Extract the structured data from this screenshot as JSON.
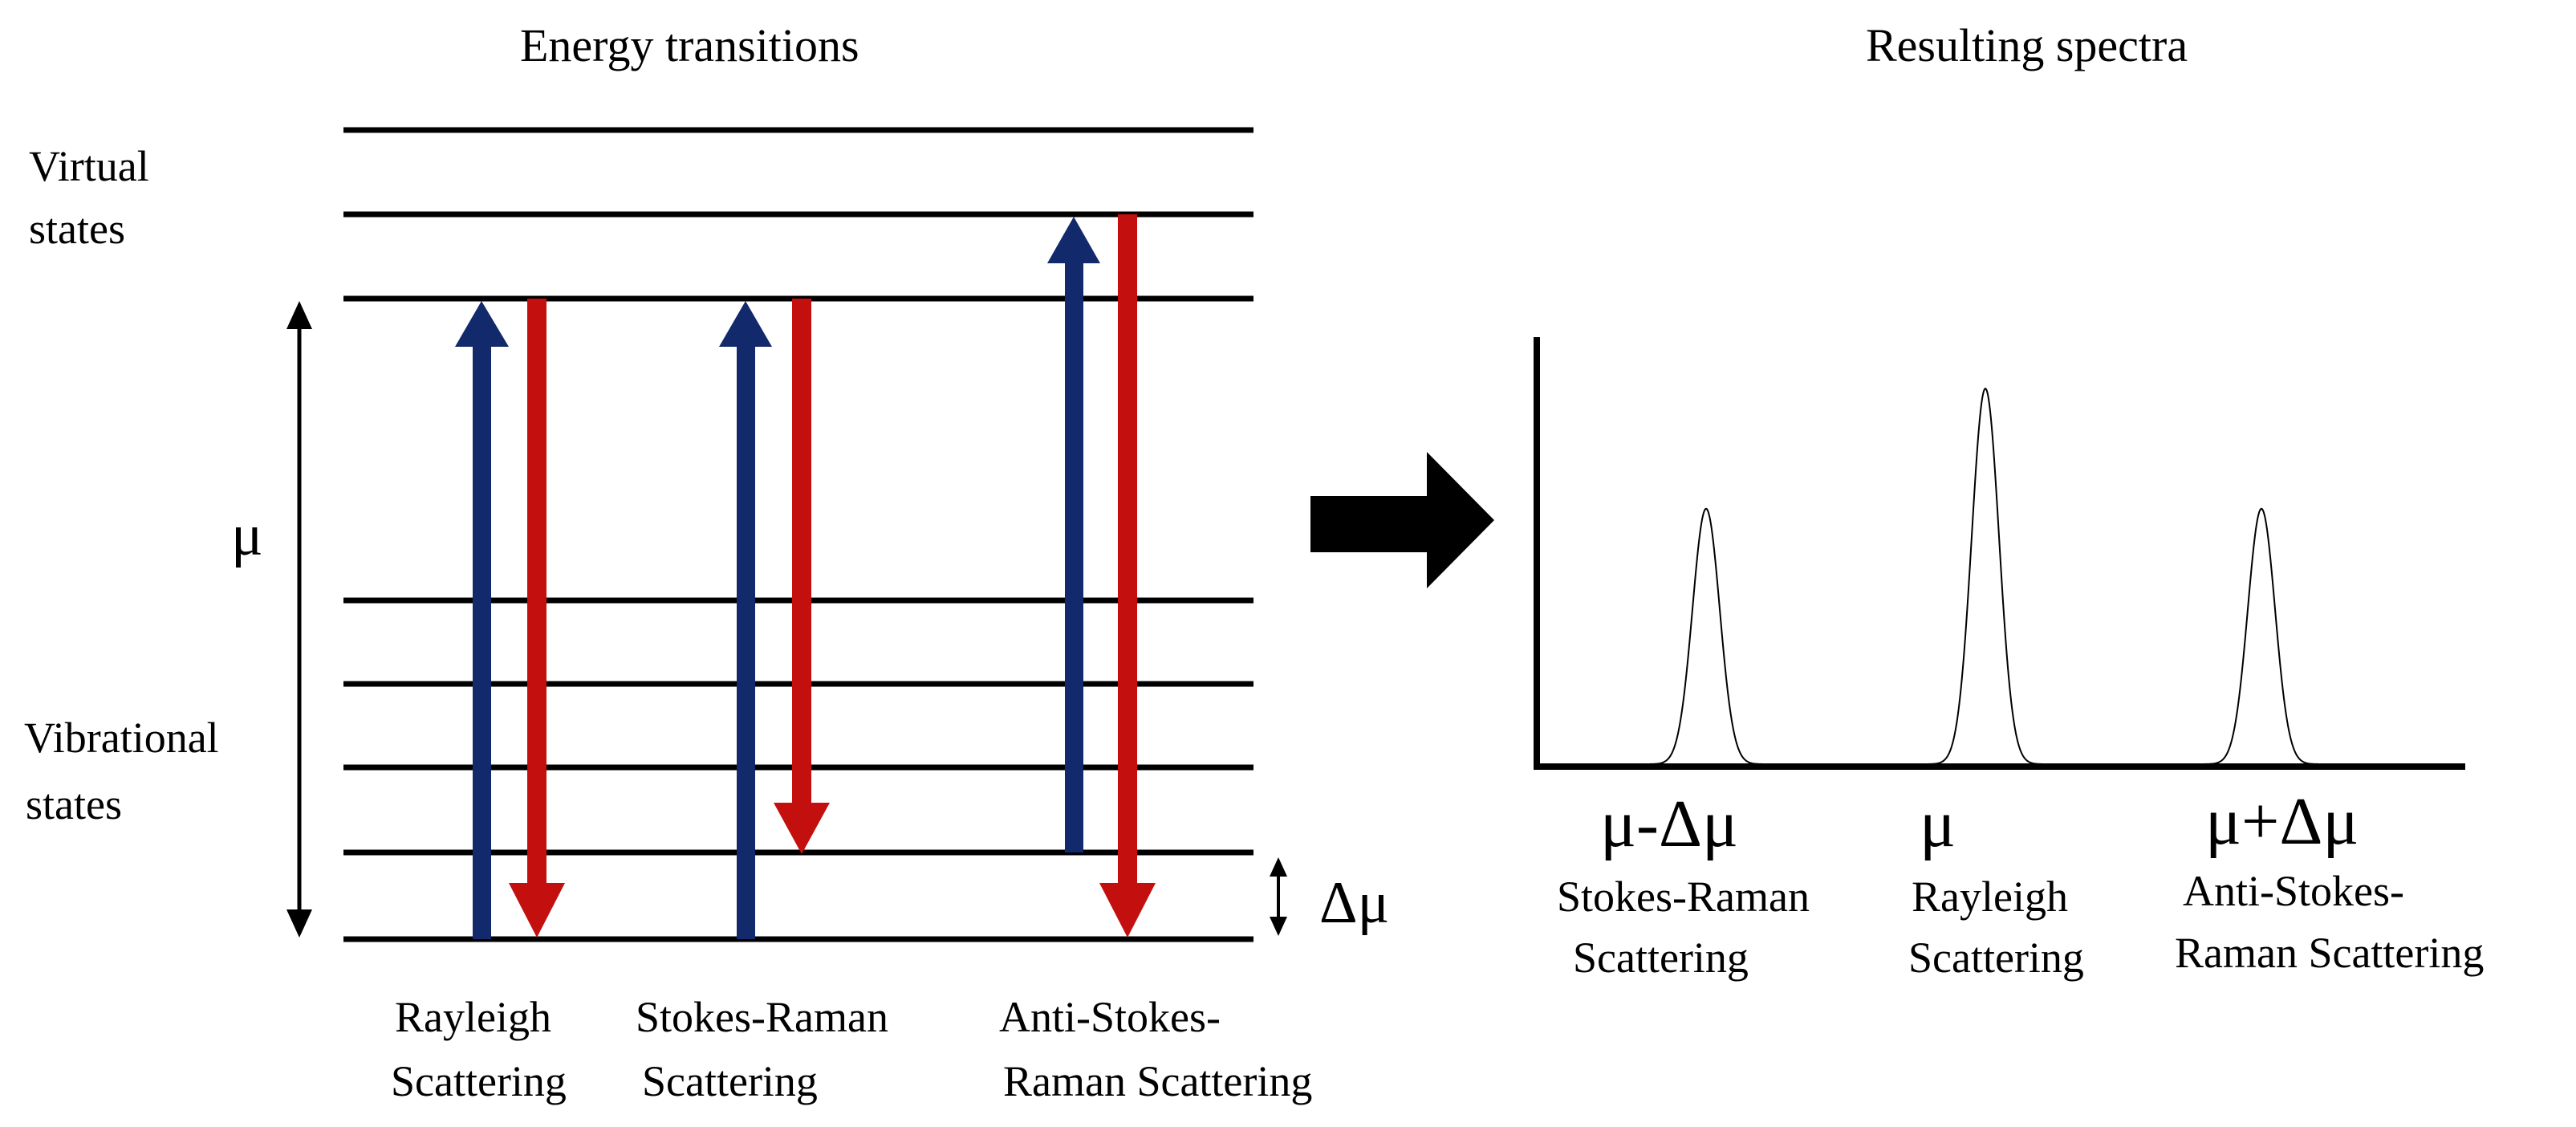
{
  "left_panel": {
    "title": "Energy transitions",
    "virtual_label_line1": "Virtual",
    "virtual_label_line2": "states",
    "vibrational_label_line1": "Vibrational",
    "vibrational_label_line2": "states",
    "mu_symbol": "μ",
    "delta_mu_symbol": "Δμ",
    "captions": [
      {
        "line1": "Rayleigh",
        "line2": "Scattering"
      },
      {
        "line1": "Stokes-Raman",
        "line2": "Scattering"
      },
      {
        "line1": "Anti-Stokes-",
        "line2": "Raman Scattering"
      }
    ]
  },
  "right_panel": {
    "title": "Resulting spectra",
    "peaks": [
      {
        "symbol": "μ-Δμ",
        "line1": "Stokes-Raman",
        "line2": "Scattering",
        "relative_height": 0.68
      },
      {
        "symbol": "μ",
        "line1": "Rayleigh",
        "line2": "Scattering",
        "relative_height": 1.0
      },
      {
        "symbol": "μ+Δμ",
        "line1": "Anti-Stokes-",
        "line2": "Raman Scattering",
        "relative_height": 0.68
      }
    ]
  },
  "colors": {
    "excitation_arrow": "#122a6b",
    "emission_arrow": "#c40f0f",
    "lines": "#000000",
    "background": "#ffffff"
  }
}
